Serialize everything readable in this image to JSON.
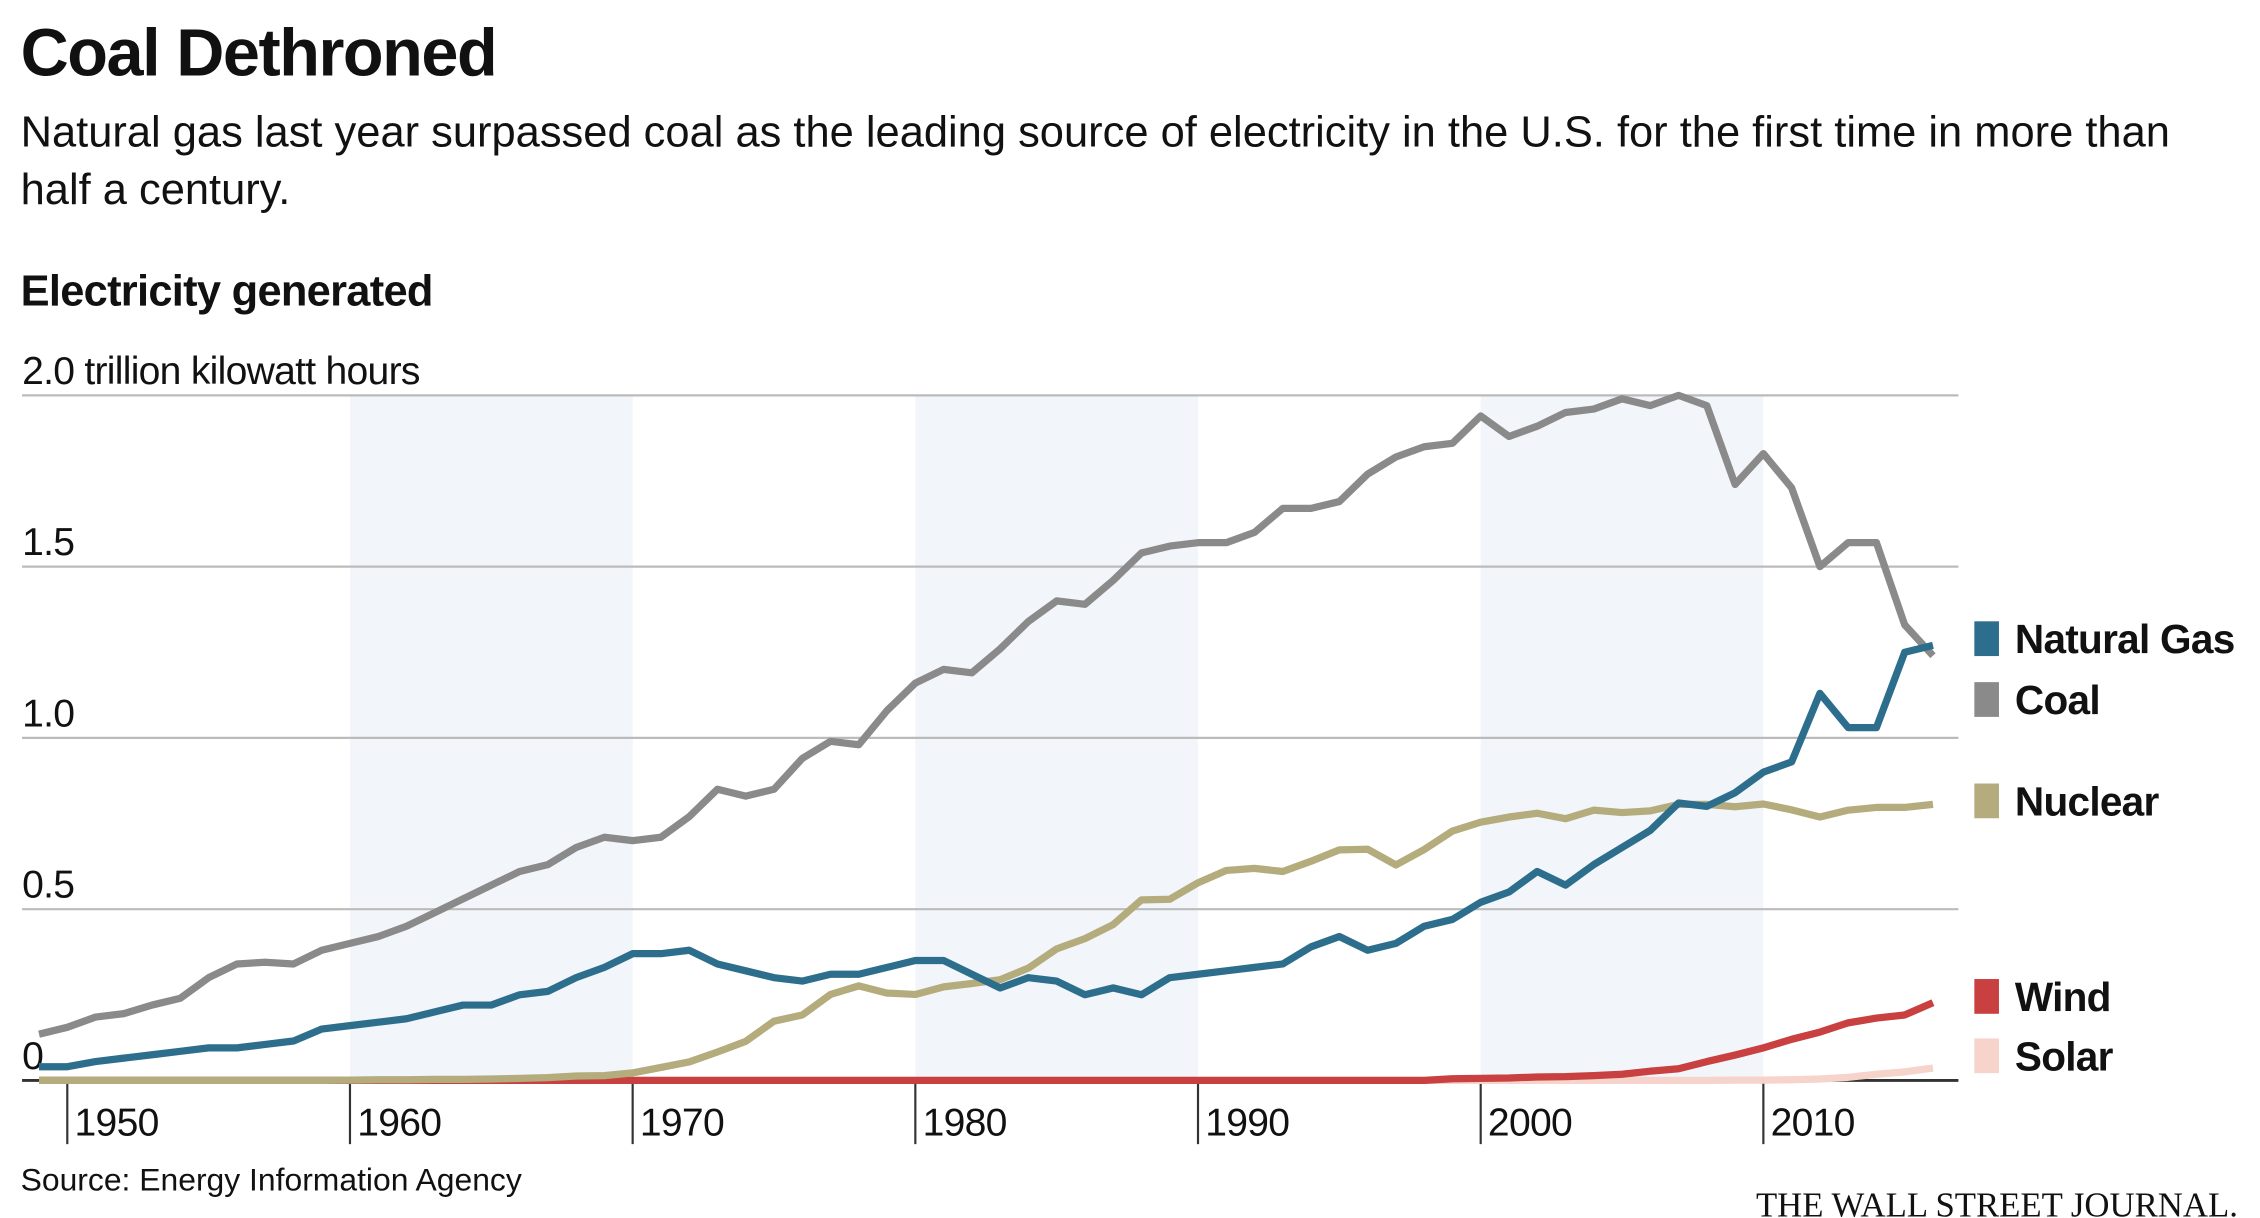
{
  "chart_data": {
    "type": "line",
    "title": "Coal Dethroned",
    "subtitle": "Natural gas last year surpassed coal as the leading source of electricity in the U.S. for the first time in more than half a century.",
    "chart_title": "Electricity generated",
    "source": "Source: Energy Information Agency",
    "credit": "THE WALL STREET JOURNAL.",
    "x": [
      1949,
      1950,
      1951,
      1952,
      1953,
      1954,
      1955,
      1956,
      1957,
      1958,
      1959,
      1960,
      1961,
      1962,
      1963,
      1964,
      1965,
      1966,
      1967,
      1968,
      1969,
      1970,
      1971,
      1972,
      1973,
      1974,
      1975,
      1976,
      1977,
      1978,
      1979,
      1980,
      1981,
      1982,
      1983,
      1984,
      1985,
      1986,
      1987,
      1988,
      1989,
      1990,
      1991,
      1992,
      1993,
      1994,
      1995,
      1996,
      1997,
      1998,
      1999,
      2000,
      2001,
      2002,
      2003,
      2004,
      2005,
      2006,
      2007,
      2008,
      2009,
      2010,
      2011,
      2012,
      2013,
      2014,
      2015,
      2016
    ],
    "xlim": [
      1948.4,
      2016.9
    ],
    "xticks": [
      1950,
      1960,
      1970,
      1980,
      1990,
      2000,
      2010
    ],
    "ylim": [
      0,
      2
    ],
    "yticks": [
      0,
      0.5,
      {
        "value": 1,
        "label": "1.0"
      },
      1.5,
      {
        "value": 2,
        "label": "2.0 trillion kilowatt hours"
      }
    ],
    "grid": true,
    "series": [
      {
        "name": "Natural Gas",
        "color": "#2d6e8d",
        "values": [
          0.04,
          0.04,
          0.055,
          0.065,
          0.075,
          0.085,
          0.095,
          0.095,
          0.105,
          0.115,
          0.15,
          0.16,
          0.17,
          0.18,
          0.2,
          0.22,
          0.22,
          0.25,
          0.26,
          0.3,
          0.33,
          0.37,
          0.37,
          0.38,
          0.34,
          0.32,
          0.3,
          0.29,
          0.31,
          0.31,
          0.33,
          0.35,
          0.35,
          0.31,
          0.27,
          0.3,
          0.29,
          0.25,
          0.27,
          0.25,
          0.3,
          0.31,
          0.32,
          0.33,
          0.34,
          0.39,
          0.42,
          0.38,
          0.4,
          0.45,
          0.47,
          0.52,
          0.55,
          0.61,
          0.57,
          0.63,
          0.68,
          0.73,
          0.81,
          0.8,
          0.84,
          0.9,
          0.93,
          1.13,
          1.03,
          1.03,
          1.25,
          1.27
        ]
      },
      {
        "name": "Coal",
        "color": "#8a8a8a",
        "values": [
          0.135,
          0.155,
          0.185,
          0.195,
          0.22,
          0.24,
          0.3,
          0.34,
          0.345,
          0.34,
          0.38,
          0.4,
          0.42,
          0.45,
          0.49,
          0.53,
          0.57,
          0.61,
          0.63,
          0.68,
          0.71,
          0.7,
          0.71,
          0.77,
          0.85,
          0.83,
          0.85,
          0.94,
          0.99,
          0.98,
          1.08,
          1.16,
          1.2,
          1.19,
          1.26,
          1.34,
          1.4,
          1.39,
          1.46,
          1.54,
          1.56,
          1.57,
          1.57,
          1.6,
          1.67,
          1.67,
          1.69,
          1.77,
          1.82,
          1.85,
          1.86,
          1.94,
          1.88,
          1.91,
          1.95,
          1.96,
          1.99,
          1.97,
          2.0,
          1.97,
          1.74,
          1.83,
          1.73,
          1.5,
          1.57,
          1.57,
          1.33,
          1.24
        ]
      },
      {
        "name": "Nuclear",
        "color": "#b4ac7c",
        "values": [
          0,
          0,
          0,
          0,
          0,
          0,
          0,
          0,
          0,
          0,
          0,
          0.001,
          0.002,
          0.002,
          0.003,
          0.003,
          0.004,
          0.006,
          0.008,
          0.013,
          0.014,
          0.022,
          0.038,
          0.054,
          0.083,
          0.114,
          0.173,
          0.191,
          0.251,
          0.276,
          0.255,
          0.251,
          0.273,
          0.283,
          0.294,
          0.328,
          0.384,
          0.414,
          0.455,
          0.527,
          0.529,
          0.577,
          0.613,
          0.619,
          0.61,
          0.64,
          0.673,
          0.675,
          0.629,
          0.674,
          0.728,
          0.754,
          0.769,
          0.78,
          0.764,
          0.789,
          0.782,
          0.787,
          0.806,
          0.806,
          0.799,
          0.807,
          0.79,
          0.769,
          0.789,
          0.797,
          0.797,
          0.806
        ]
      },
      {
        "name": "Wind",
        "color": "#c8403f",
        "values": [
          0,
          0,
          0,
          0,
          0,
          0,
          0,
          0,
          0,
          0,
          0,
          0,
          0,
          0,
          0,
          0,
          0,
          0,
          0,
          0,
          0,
          0,
          0,
          0,
          0,
          0,
          0,
          0,
          0,
          0,
          0,
          0,
          0,
          0,
          0,
          0,
          0,
          0,
          0,
          0,
          0,
          0,
          0,
          0,
          0,
          0,
          0,
          0,
          0,
          0,
          0.005,
          0.006,
          0.007,
          0.01,
          0.011,
          0.014,
          0.018,
          0.027,
          0.034,
          0.055,
          0.074,
          0.095,
          0.12,
          0.141,
          0.168,
          0.182,
          0.191,
          0.227
        ]
      },
      {
        "name": "Solar",
        "color": "#f6d3cb",
        "values": [
          0,
          0,
          0,
          0,
          0,
          0,
          0,
          0,
          0,
          0,
          0,
          0,
          0,
          0,
          0,
          0,
          0,
          0,
          0,
          0,
          0,
          0,
          0,
          0,
          0,
          0,
          0,
          0,
          0,
          0,
          0,
          0,
          0,
          0,
          0,
          0,
          0,
          0,
          0,
          0,
          0,
          0,
          0,
          0,
          0,
          0,
          0,
          0,
          0,
          0,
          0,
          0,
          0,
          0,
          0,
          0,
          0,
          0,
          0,
          0,
          0.001,
          0.001,
          0.002,
          0.004,
          0.009,
          0.018,
          0.025,
          0.036
        ]
      }
    ]
  }
}
